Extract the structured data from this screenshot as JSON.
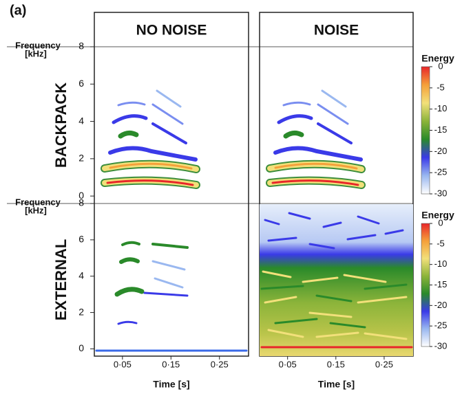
{
  "figure_label": "(a)",
  "chart_data": {
    "type": "spectrogram",
    "columns": [
      "NO NOISE",
      "NOISE"
    ],
    "rows": [
      "BACKPACK",
      "EXTERNAL"
    ],
    "ylabel": [
      "Frequency",
      "[kHz]"
    ],
    "xlabel": "Time [s]",
    "xlim": [
      -0.008,
      0.31
    ],
    "xticks": [
      {
        "value": 0.05,
        "label": "0·05"
      },
      {
        "value": 0.15,
        "label": "0·15"
      },
      {
        "value": 0.25,
        "label": "0·25"
      }
    ],
    "ylim": [
      -0.4,
      8
    ],
    "yticks": [
      0,
      2,
      4,
      6,
      8
    ],
    "colorbar": {
      "title": "Energy",
      "lim": [
        -30,
        0
      ],
      "ticks": [
        0,
        -5,
        -10,
        -15,
        -20,
        -25,
        -30
      ],
      "colors": [
        "#e8262a",
        "#f5a03a",
        "#f2e07a",
        "#8cb43a",
        "#2a8a2a",
        "#3a3ae8",
        "#9ab8f0",
        "#ffffff"
      ]
    }
  }
}
